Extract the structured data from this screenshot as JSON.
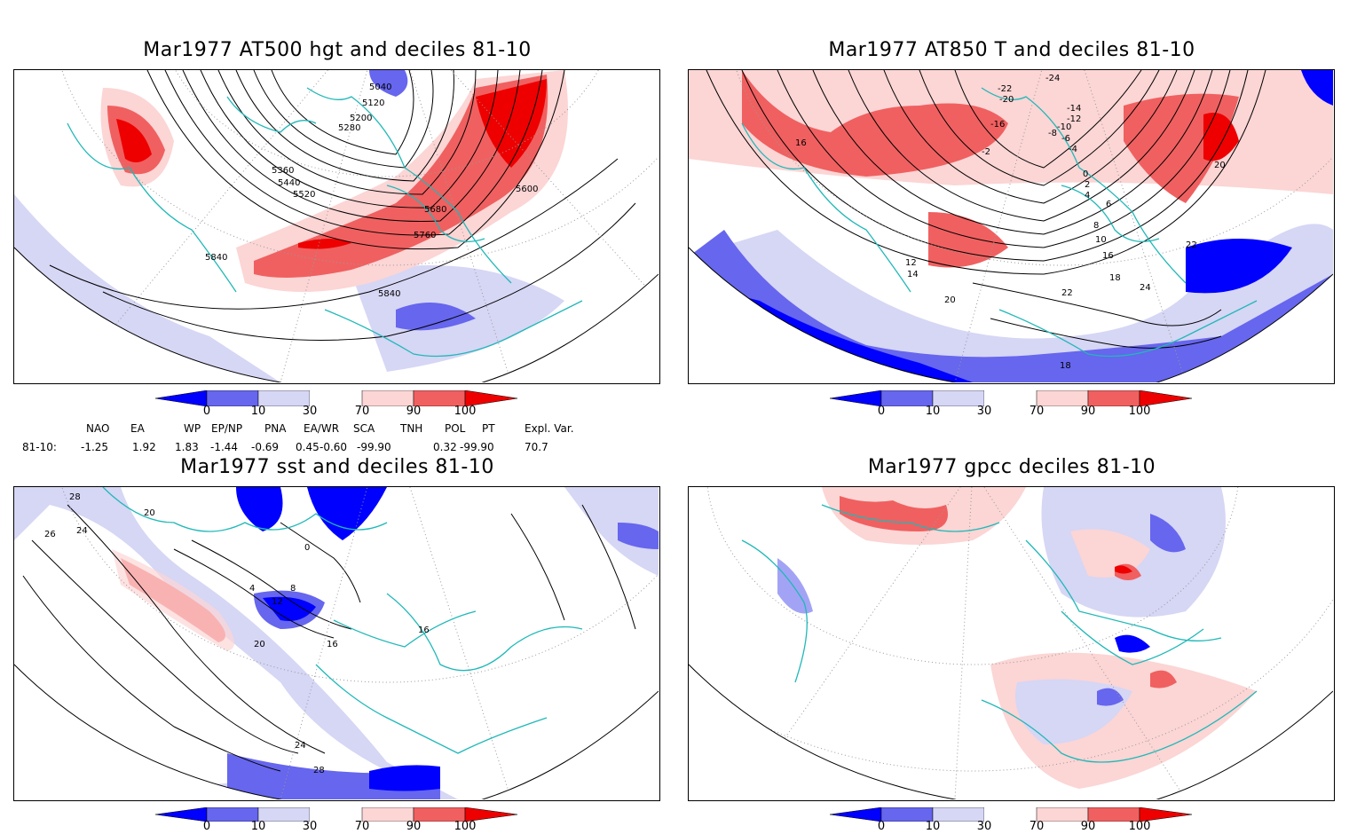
{
  "panels": [
    {
      "id": "p1",
      "title": "Mar1977 AT500 hgt and deciles 81-10",
      "contour_labels": [
        "5040",
        "5120",
        "5200",
        "5280",
        "5360",
        "5440",
        "5520",
        "5600",
        "5680",
        "5760",
        "5840",
        "5840"
      ]
    },
    {
      "id": "p2",
      "title": "Mar1977 AT850 T and deciles 81-10",
      "contour_labels": [
        "-24",
        "-22",
        "-20",
        "-16",
        "-14",
        "-12",
        "-10",
        "-8",
        "-6",
        "-4",
        "-2",
        "0",
        "2",
        "4",
        "6",
        "8",
        "10",
        "12",
        "14",
        "16",
        "18",
        "20",
        "22",
        "24",
        "18",
        "16",
        "22",
        "20"
      ]
    },
    {
      "id": "p3",
      "title": "Mar1977 sst and deciles 81-10",
      "contour_labels": [
        "28",
        "26",
        "20",
        "24",
        "0",
        "4",
        "8",
        "12",
        "16",
        "20",
        "24",
        "28",
        "16"
      ]
    },
    {
      "id": "p4",
      "title": "Mar1977 gpcc deciles 81-10",
      "contour_labels": []
    }
  ],
  "colorbar": {
    "labels": [
      "0",
      "10",
      "30",
      "70",
      "90",
      "100"
    ],
    "colors": {
      "dark_blue": "#0000ff",
      "blue": "#6666ee",
      "light_blue": "#d6d6f5",
      "white": "#ffffff",
      "light_red": "#fcd5d5",
      "red": "#f06060",
      "dark_red": "#ee0000"
    }
  },
  "indices": {
    "headers": [
      "NAO",
      "EA",
      "WP",
      "EP/NP",
      "PNA",
      "EA/WR",
      "SCA",
      "TNH",
      "POL",
      "PT",
      "Expl. Var."
    ],
    "row_label": "81-10:",
    "values": [
      "-1.25",
      "1.92",
      "1.83",
      "-1.44",
      "-0.69",
      "0.45",
      "-0.60",
      "-99.90",
      "0.32",
      "-99.90",
      "70.7"
    ]
  },
  "map_colors": {
    "coast": "#20b8b8",
    "contour": "#000000",
    "grid": "#999999"
  }
}
